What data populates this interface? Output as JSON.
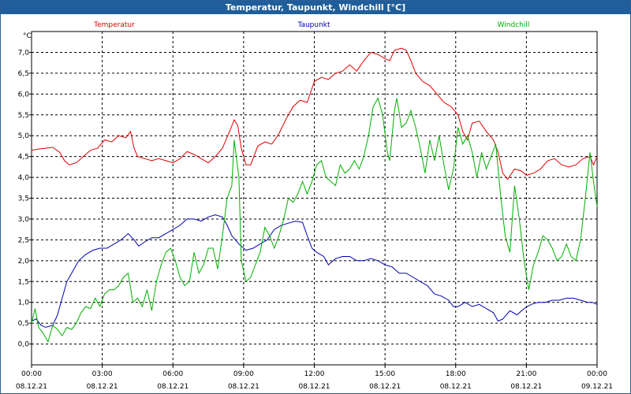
{
  "window": {
    "title": "Temperatur, Taupunkt, Windchill [°C]"
  },
  "chart_data": {
    "type": "line",
    "title": "Temperatur, Taupunkt, Windchill [°C]",
    "ylabel": "°C",
    "xlabel": "",
    "ylim": [
      -0.5,
      7.5
    ],
    "xlim": [
      0,
      24
    ],
    "grid": true,
    "legend_placement": "top",
    "yticks": [
      "0.0",
      "0.5",
      "1.0",
      "1.5",
      "2.0",
      "2.5",
      "3.0",
      "3.5",
      "4.0",
      "4.5",
      "5.0",
      "5.5",
      "6.0",
      "6.5",
      "7.0"
    ],
    "ytick_labels": [
      "0,0",
      "0,5",
      "1,0",
      "1,5",
      "2,0",
      "2,5",
      "3,0",
      "3,5",
      "4,0",
      "4,5",
      "5,0",
      "5,5",
      "6,0",
      "6,5",
      "7,0"
    ],
    "xticks": [
      {
        "time": "00:00",
        "date": "08.12.21"
      },
      {
        "time": "03:00",
        "date": "08.12.21"
      },
      {
        "time": "06:00",
        "date": "08.12.21"
      },
      {
        "time": "09:00",
        "date": "08.12.21"
      },
      {
        "time": "12:00",
        "date": "08.12.21"
      },
      {
        "time": "15:00",
        "date": "08.12.21"
      },
      {
        "time": "18:00",
        "date": "08.12.21"
      },
      {
        "time": "21:00",
        "date": "08.12.21"
      },
      {
        "time": "00:00",
        "date": "09.12.21"
      }
    ],
    "series": [
      {
        "name": "Temperatur",
        "color": "#e00000",
        "points": [
          [
            0,
            4.65
          ],
          [
            0.3,
            4.68
          ],
          [
            0.6,
            4.7
          ],
          [
            0.9,
            4.72
          ],
          [
            1.2,
            4.6
          ],
          [
            1.4,
            4.4
          ],
          [
            1.6,
            4.3
          ],
          [
            1.9,
            4.35
          ],
          [
            2.2,
            4.5
          ],
          [
            2.5,
            4.65
          ],
          [
            2.8,
            4.7
          ],
          [
            3.1,
            4.9
          ],
          [
            3.4,
            4.85
          ],
          [
            3.7,
            5.0
          ],
          [
            4.0,
            4.95
          ],
          [
            4.2,
            5.1
          ],
          [
            4.35,
            4.7
          ],
          [
            4.5,
            4.5
          ],
          [
            4.8,
            4.45
          ],
          [
            5.1,
            4.4
          ],
          [
            5.4,
            4.45
          ],
          [
            5.7,
            4.4
          ],
          [
            6.0,
            4.35
          ],
          [
            6.3,
            4.45
          ],
          [
            6.6,
            4.62
          ],
          [
            6.9,
            4.55
          ],
          [
            7.2,
            4.45
          ],
          [
            7.5,
            4.35
          ],
          [
            7.8,
            4.5
          ],
          [
            8.1,
            4.7
          ],
          [
            8.4,
            5.1
          ],
          [
            8.6,
            5.38
          ],
          [
            8.75,
            5.25
          ],
          [
            8.9,
            4.7
          ],
          [
            9.1,
            4.3
          ],
          [
            9.3,
            4.3
          ],
          [
            9.6,
            4.75
          ],
          [
            9.9,
            4.85
          ],
          [
            10.2,
            4.8
          ],
          [
            10.5,
            5.05
          ],
          [
            10.8,
            5.4
          ],
          [
            11.1,
            5.7
          ],
          [
            11.4,
            5.85
          ],
          [
            11.7,
            5.8
          ],
          [
            12.0,
            6.3
          ],
          [
            12.3,
            6.4
          ],
          [
            12.6,
            6.35
          ],
          [
            12.9,
            6.5
          ],
          [
            13.2,
            6.55
          ],
          [
            13.5,
            6.7
          ],
          [
            13.8,
            6.55
          ],
          [
            14.1,
            6.8
          ],
          [
            14.4,
            7.0
          ],
          [
            14.7,
            6.95
          ],
          [
            15.0,
            6.85
          ],
          [
            15.2,
            6.8
          ],
          [
            15.4,
            7.05
          ],
          [
            15.7,
            7.1
          ],
          [
            15.9,
            7.05
          ],
          [
            16.1,
            6.8
          ],
          [
            16.3,
            6.5
          ],
          [
            16.6,
            6.3
          ],
          [
            16.9,
            6.2
          ],
          [
            17.2,
            6.0
          ],
          [
            17.5,
            5.8
          ],
          [
            17.8,
            5.7
          ],
          [
            18.1,
            5.5
          ],
          [
            18.3,
            5.1
          ],
          [
            18.5,
            4.9
          ],
          [
            18.7,
            5.3
          ],
          [
            19.0,
            5.35
          ],
          [
            19.3,
            5.1
          ],
          [
            19.6,
            4.9
          ],
          [
            19.8,
            4.6
          ],
          [
            20.0,
            4.1
          ],
          [
            20.2,
            3.95
          ],
          [
            20.5,
            4.2
          ],
          [
            20.8,
            4.15
          ],
          [
            21.0,
            4.05
          ],
          [
            21.3,
            4.1
          ],
          [
            21.6,
            4.2
          ],
          [
            21.9,
            4.4
          ],
          [
            22.2,
            4.45
          ],
          [
            22.5,
            4.3
          ],
          [
            22.8,
            4.25
          ],
          [
            23.1,
            4.3
          ],
          [
            23.4,
            4.45
          ],
          [
            23.7,
            4.5
          ],
          [
            23.85,
            4.3
          ],
          [
            24.0,
            4.5
          ]
        ]
      },
      {
        "name": "Taupunkt",
        "color": "#0000b0",
        "points": [
          [
            0,
            0.55
          ],
          [
            0.2,
            0.6
          ],
          [
            0.4,
            0.45
          ],
          [
            0.6,
            0.4
          ],
          [
            0.9,
            0.45
          ],
          [
            1.1,
            0.7
          ],
          [
            1.3,
            1.1
          ],
          [
            1.5,
            1.5
          ],
          [
            1.8,
            1.8
          ],
          [
            2.0,
            2.0
          ],
          [
            2.3,
            2.15
          ],
          [
            2.6,
            2.25
          ],
          [
            2.9,
            2.3
          ],
          [
            3.2,
            2.3
          ],
          [
            3.5,
            2.4
          ],
          [
            3.8,
            2.5
          ],
          [
            4.1,
            2.65
          ],
          [
            4.35,
            2.5
          ],
          [
            4.55,
            2.35
          ],
          [
            4.8,
            2.45
          ],
          [
            5.1,
            2.55
          ],
          [
            5.4,
            2.55
          ],
          [
            5.7,
            2.65
          ],
          [
            6.0,
            2.75
          ],
          [
            6.3,
            2.85
          ],
          [
            6.6,
            3.0
          ],
          [
            6.9,
            3.0
          ],
          [
            7.2,
            2.95
          ],
          [
            7.5,
            3.05
          ],
          [
            7.8,
            3.1
          ],
          [
            8.1,
            3.05
          ],
          [
            8.3,
            2.85
          ],
          [
            8.5,
            2.6
          ],
          [
            8.8,
            2.4
          ],
          [
            9.1,
            2.25
          ],
          [
            9.4,
            2.3
          ],
          [
            9.7,
            2.4
          ],
          [
            10.0,
            2.5
          ],
          [
            10.3,
            2.75
          ],
          [
            10.6,
            2.85
          ],
          [
            10.9,
            2.9
          ],
          [
            11.2,
            2.95
          ],
          [
            11.5,
            2.92
          ],
          [
            11.7,
            2.6
          ],
          [
            11.9,
            2.3
          ],
          [
            12.1,
            2.2
          ],
          [
            12.4,
            2.1
          ],
          [
            12.6,
            1.9
          ],
          [
            12.9,
            2.05
          ],
          [
            13.2,
            2.1
          ],
          [
            13.5,
            2.1
          ],
          [
            13.8,
            2.0
          ],
          [
            14.1,
            2.0
          ],
          [
            14.4,
            2.05
          ],
          [
            14.7,
            2.0
          ],
          [
            15.0,
            1.9
          ],
          [
            15.3,
            1.85
          ],
          [
            15.6,
            1.7
          ],
          [
            15.9,
            1.7
          ],
          [
            16.2,
            1.6
          ],
          [
            16.5,
            1.5
          ],
          [
            16.8,
            1.4
          ],
          [
            17.1,
            1.2
          ],
          [
            17.4,
            1.15
          ],
          [
            17.7,
            1.05
          ],
          [
            17.9,
            0.9
          ],
          [
            18.1,
            0.9
          ],
          [
            18.4,
            1.0
          ],
          [
            18.7,
            0.9
          ],
          [
            19.0,
            0.95
          ],
          [
            19.3,
            0.85
          ],
          [
            19.6,
            0.75
          ],
          [
            19.8,
            0.55
          ],
          [
            20.0,
            0.6
          ],
          [
            20.3,
            0.8
          ],
          [
            20.6,
            0.7
          ],
          [
            20.9,
            0.85
          ],
          [
            21.2,
            0.95
          ],
          [
            21.5,
            1.0
          ],
          [
            21.8,
            1.0
          ],
          [
            22.1,
            1.05
          ],
          [
            22.4,
            1.05
          ],
          [
            22.7,
            1.1
          ],
          [
            23.0,
            1.1
          ],
          [
            23.3,
            1.05
          ],
          [
            23.6,
            1.0
          ],
          [
            23.8,
            1.0
          ],
          [
            24.0,
            0.95
          ]
        ]
      },
      {
        "name": "Windchill",
        "color": "#00b000",
        "points": [
          [
            0,
            0.5
          ],
          [
            0.15,
            0.85
          ],
          [
            0.3,
            0.4
          ],
          [
            0.5,
            0.25
          ],
          [
            0.7,
            0.05
          ],
          [
            0.9,
            0.45
          ],
          [
            1.1,
            0.35
          ],
          [
            1.3,
            0.2
          ],
          [
            1.5,
            0.4
          ],
          [
            1.7,
            0.35
          ],
          [
            1.9,
            0.5
          ],
          [
            2.1,
            0.75
          ],
          [
            2.3,
            0.9
          ],
          [
            2.5,
            0.85
          ],
          [
            2.7,
            1.1
          ],
          [
            2.9,
            0.9
          ],
          [
            3.1,
            1.2
          ],
          [
            3.3,
            1.3
          ],
          [
            3.5,
            1.3
          ],
          [
            3.7,
            1.4
          ],
          [
            3.9,
            1.6
          ],
          [
            4.1,
            1.7
          ],
          [
            4.3,
            1.0
          ],
          [
            4.5,
            1.1
          ],
          [
            4.7,
            0.9
          ],
          [
            4.9,
            1.3
          ],
          [
            5.1,
            0.8
          ],
          [
            5.3,
            1.5
          ],
          [
            5.5,
            1.9
          ],
          [
            5.7,
            2.2
          ],
          [
            5.9,
            2.3
          ],
          [
            6.1,
            2.0
          ],
          [
            6.3,
            1.6
          ],
          [
            6.5,
            1.4
          ],
          [
            6.7,
            1.5
          ],
          [
            6.9,
            2.2
          ],
          [
            7.1,
            1.7
          ],
          [
            7.3,
            1.9
          ],
          [
            7.5,
            2.3
          ],
          [
            7.7,
            2.3
          ],
          [
            7.9,
            1.8
          ],
          [
            8.1,
            2.6
          ],
          [
            8.3,
            3.5
          ],
          [
            8.5,
            3.8
          ],
          [
            8.6,
            4.9
          ],
          [
            8.8,
            4.0
          ],
          [
            8.9,
            2.0
          ],
          [
            9.1,
            1.5
          ],
          [
            9.3,
            1.6
          ],
          [
            9.5,
            1.9
          ],
          [
            9.7,
            2.2
          ],
          [
            9.9,
            2.8
          ],
          [
            10.1,
            2.6
          ],
          [
            10.3,
            2.3
          ],
          [
            10.5,
            2.6
          ],
          [
            10.7,
            3.0
          ],
          [
            10.9,
            3.5
          ],
          [
            11.1,
            3.4
          ],
          [
            11.3,
            3.6
          ],
          [
            11.5,
            3.9
          ],
          [
            11.7,
            3.6
          ],
          [
            11.9,
            3.9
          ],
          [
            12.1,
            4.3
          ],
          [
            12.3,
            4.4
          ],
          [
            12.5,
            4.0
          ],
          [
            12.7,
            3.9
          ],
          [
            12.9,
            3.8
          ],
          [
            13.1,
            4.3
          ],
          [
            13.3,
            4.1
          ],
          [
            13.5,
            4.2
          ],
          [
            13.7,
            4.4
          ],
          [
            13.9,
            4.2
          ],
          [
            14.1,
            4.5
          ],
          [
            14.3,
            5.0
          ],
          [
            14.5,
            5.7
          ],
          [
            14.7,
            5.9
          ],
          [
            14.9,
            5.5
          ],
          [
            15.1,
            4.6
          ],
          [
            15.2,
            4.4
          ],
          [
            15.4,
            5.6
          ],
          [
            15.5,
            5.9
          ],
          [
            15.7,
            5.2
          ],
          [
            15.9,
            5.3
          ],
          [
            16.1,
            5.6
          ],
          [
            16.3,
            5.2
          ],
          [
            16.5,
            4.7
          ],
          [
            16.7,
            4.1
          ],
          [
            16.9,
            4.9
          ],
          [
            17.1,
            4.4
          ],
          [
            17.3,
            5.0
          ],
          [
            17.5,
            4.3
          ],
          [
            17.7,
            3.7
          ],
          [
            17.9,
            4.2
          ],
          [
            18.1,
            5.2
          ],
          [
            18.3,
            4.8
          ],
          [
            18.5,
            5.0
          ],
          [
            18.7,
            4.6
          ],
          [
            18.9,
            4.0
          ],
          [
            19.1,
            4.6
          ],
          [
            19.3,
            4.2
          ],
          [
            19.5,
            4.5
          ],
          [
            19.7,
            4.8
          ],
          [
            19.9,
            3.6
          ],
          [
            20.1,
            2.6
          ],
          [
            20.3,
            2.2
          ],
          [
            20.5,
            3.8
          ],
          [
            20.7,
            3.0
          ],
          [
            20.9,
            2.0
          ],
          [
            21.1,
            1.3
          ],
          [
            21.3,
            1.9
          ],
          [
            21.5,
            2.2
          ],
          [
            21.7,
            2.6
          ],
          [
            21.9,
            2.5
          ],
          [
            22.1,
            2.3
          ],
          [
            22.3,
            2.0
          ],
          [
            22.5,
            2.1
          ],
          [
            22.7,
            2.4
          ],
          [
            22.9,
            2.1
          ],
          [
            23.1,
            2.0
          ],
          [
            23.3,
            2.5
          ],
          [
            23.5,
            3.5
          ],
          [
            23.7,
            4.6
          ],
          [
            23.85,
            3.9
          ],
          [
            24.0,
            3.3
          ]
        ]
      }
    ]
  }
}
